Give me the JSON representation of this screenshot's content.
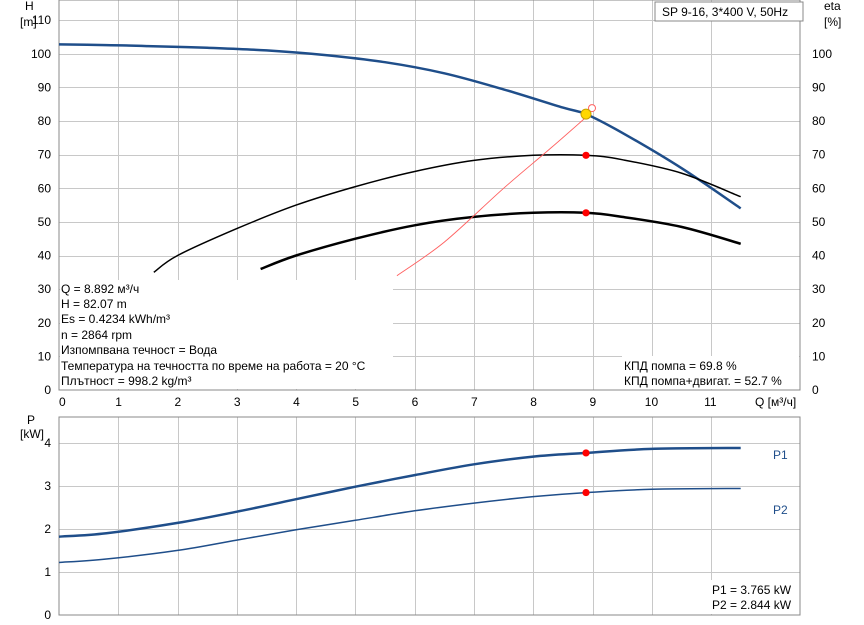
{
  "chart_data": [
    {
      "type": "line",
      "title": "SP 9-16, 3*400 V, 50Hz",
      "xlabel": "Q [м³/ч]",
      "x_axis_label": "Q [м³/ч]",
      "xlim": [
        0,
        12.5
      ],
      "x_ticks": [
        0,
        1,
        2,
        3,
        4,
        5,
        6,
        7,
        8,
        9,
        10,
        11
      ],
      "ylabel": "H [m]",
      "y_label_line1": "H",
      "y_label_line2": "[m]",
      "ylim": [
        0,
        116
      ],
      "y_ticks": [
        0,
        10,
        20,
        30,
        40,
        50,
        60,
        70,
        80,
        90,
        100,
        110
      ],
      "y2label": "eta [%]",
      "y2_label_line1": "eta",
      "y2_label_line2": "[%]",
      "y2lim": [
        0,
        116
      ],
      "y2_ticks": [
        0,
        10,
        20,
        30,
        40,
        50,
        60,
        70,
        80,
        90,
        100
      ],
      "grid": true,
      "series": [
        {
          "key": "H",
          "color": "#1f4e8a",
          "x": [
            0,
            0.8,
            1.5,
            2.5,
            3.5,
            4.5,
            5.5,
            6.5,
            7.5,
            8.5,
            8.89,
            9.5,
            10.5,
            11.5
          ],
          "y": [
            102.8,
            102.6,
            102.3,
            101.8,
            101.0,
            99.6,
            97.5,
            94.2,
            89.4,
            84.0,
            82.07,
            76.5,
            66.0,
            54.0
          ]
        },
        {
          "key": "eta_pump",
          "color": "#000000",
          "x": [
            1.6,
            2.0,
            3.0,
            4.0,
            5.0,
            6.0,
            7.0,
            8.0,
            8.89,
            9.5,
            10.5,
            11.5
          ],
          "y": [
            35.0,
            40.0,
            48.0,
            55.0,
            60.5,
            65.0,
            68.3,
            69.8,
            69.8,
            68.5,
            64.5,
            57.5
          ]
        },
        {
          "key": "eta_total",
          "color": "#000000",
          "x": [
            3.4,
            4.0,
            5.0,
            6.0,
            7.0,
            8.0,
            8.89,
            9.5,
            10.5,
            11.5
          ],
          "y": [
            36.0,
            40.0,
            45.0,
            49.0,
            51.5,
            52.7,
            52.7,
            51.5,
            48.5,
            43.5
          ]
        },
        {
          "key": "system",
          "color": "#ff6060",
          "x": [
            5.7,
            6.5,
            7.5,
            8.3,
            8.95
          ],
          "y": [
            34.0,
            44.0,
            60.0,
            72.0,
            82.07
          ]
        }
      ],
      "operating_points": [
        {
          "x": 8.89,
          "y": 82.07,
          "kind": "duty"
        },
        {
          "x": 8.89,
          "y": 69.8,
          "kind": "marker"
        },
        {
          "x": 8.89,
          "y": 52.7,
          "kind": "marker"
        }
      ],
      "info_lines": [
        "Q = 8.892 м³/ч",
        "H = 82.07 m",
        "Es = 0.4234 kWh/m³",
        "n = 2864 rpm",
        "Изпомпвана течност = Вода",
        "Температура на течността по време на работа = 20 °C",
        "Плътност = 998.2 kg/m³"
      ],
      "efficiency_lines": [
        "КПД помпа = 69.8 %",
        "КПД помпа+двигат. = 52.7 %"
      ]
    },
    {
      "type": "line",
      "ylabel": "P [kW]",
      "y_label_line1": "P",
      "y_label_line2": "[kW]",
      "ylim": [
        0,
        4.6
      ],
      "y_ticks": [
        0,
        1,
        2,
        3,
        4
      ],
      "xlim": [
        0,
        12.5
      ],
      "grid": true,
      "series": [
        {
          "name": "P1",
          "color": "#1f4e8a",
          "x": [
            0,
            0.8,
            2,
            3,
            4,
            5,
            6,
            7,
            8,
            8.89,
            10,
            11.5
          ],
          "y": [
            1.82,
            1.9,
            2.14,
            2.4,
            2.69,
            2.98,
            3.25,
            3.5,
            3.68,
            3.765,
            3.86,
            3.88
          ]
        },
        {
          "name": "P2",
          "color": "#1f4e8a",
          "x": [
            0,
            0.8,
            2,
            3,
            4,
            5,
            6,
            7,
            8,
            8.89,
            10,
            11.5
          ],
          "y": [
            1.22,
            1.3,
            1.5,
            1.74,
            1.98,
            2.2,
            2.42,
            2.6,
            2.75,
            2.844,
            2.92,
            2.94
          ]
        }
      ],
      "operating_points": [
        {
          "x": 8.89,
          "y": 3.765
        },
        {
          "x": 8.89,
          "y": 2.844
        }
      ],
      "power_lines": [
        "P1 = 3.765 kW",
        "P2 = 2.844 kW"
      ]
    }
  ]
}
